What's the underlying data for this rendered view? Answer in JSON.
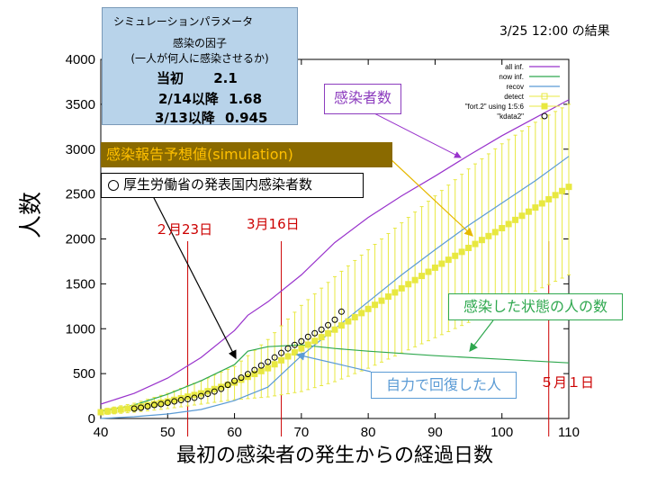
{
  "params_box": {
    "header": "シミュレーションパラメータ",
    "line1": "感染の因子",
    "line2": "(一人が何人に感染させるか)",
    "rows": [
      {
        "label": "当初",
        "value": "2.1"
      },
      {
        "label": "2/14以降",
        "value": "1.68"
      },
      {
        "label": "3/13以降",
        "value": "0.945"
      }
    ]
  },
  "result_text": "3/25 12:00 の結果",
  "annotations": {
    "infected_total": "感染者数",
    "simulation": "感染報告予想値(simulation)",
    "mhlw": "厚生労働省の発表国内感染者数",
    "infected_now": "感染した状態の人の数",
    "recovered": "自力で回復した人"
  },
  "date_markers": [
    {
      "label": "２月23日",
      "x": 53
    },
    {
      "label": "3月16日",
      "x": 67
    },
    {
      "label": "５月１日",
      "x": 107
    }
  ],
  "colors": {
    "all": "#9933cc",
    "now": "#2fa84f",
    "recov": "#5b9bd5",
    "detect": "#e8e840",
    "kdata": "#000000",
    "marker": "#cc0000",
    "arrow_sim": "#e6b800"
  },
  "chart_data": {
    "type": "line",
    "xlabel": "最初の感染者の発生からの経過日数",
    "ylabel": "人数",
    "xlim": [
      40,
      110
    ],
    "ylim": [
      0,
      4000
    ],
    "xticks": [
      40,
      50,
      60,
      70,
      80,
      90,
      100,
      110
    ],
    "yticks": [
      0,
      500,
      1000,
      1500,
      2000,
      2500,
      3000,
      3500,
      4000
    ],
    "legend_position": "top-right",
    "series": [
      {
        "name": "all inf.",
        "kind": "line",
        "x": [
          40,
          45,
          50,
          55,
          60,
          62,
          65,
          70,
          75,
          80,
          85,
          90,
          95,
          100,
          105,
          110
        ],
        "y": [
          160,
          280,
          450,
          680,
          980,
          1150,
          1300,
          1600,
          1960,
          2240,
          2480,
          2700,
          2930,
          3150,
          3350,
          3550
        ]
      },
      {
        "name": "now inf.",
        "kind": "line",
        "x": [
          40,
          45,
          50,
          55,
          60,
          62,
          65,
          70,
          75,
          80,
          90,
          100,
          110
        ],
        "y": [
          80,
          150,
          270,
          420,
          600,
          750,
          800,
          820,
          780,
          750,
          700,
          660,
          620
        ]
      },
      {
        "name": "recov",
        "kind": "line",
        "x": [
          40,
          45,
          50,
          55,
          60,
          65,
          70,
          75,
          80,
          85,
          90,
          95,
          100,
          105,
          110
        ],
        "y": [
          0,
          20,
          50,
          100,
          200,
          350,
          700,
          1000,
          1300,
          1600,
          1880,
          2150,
          2400,
          2650,
          2920
        ]
      },
      {
        "name": "detect",
        "kind": "errorbar",
        "x": [
          40,
          45,
          50,
          55,
          60,
          65,
          70,
          75,
          80,
          85,
          90,
          95,
          100,
          105,
          110
        ],
        "y": [
          70,
          120,
          190,
          280,
          400,
          560,
          780,
          990,
          1220,
          1450,
          1680,
          1900,
          2120,
          2350,
          2580
        ],
        "ylow": [
          40,
          70,
          110,
          160,
          210,
          240,
          300,
          410,
          560,
          730,
          900,
          1070,
          1240,
          1420,
          1600
        ],
        "yhigh": [
          100,
          170,
          280,
          420,
          580,
          880,
          1260,
          1580,
          1880,
          2180,
          2480,
          2780,
          3060,
          3300,
          3500
        ]
      },
      {
        "name": "\"fort.2\" using 1:5:6",
        "kind": "legend-only"
      },
      {
        "name": "\"kdata2\"",
        "kind": "scatter",
        "x": [
          45,
          46,
          47,
          48,
          49,
          50,
          51,
          52,
          53,
          54,
          55,
          56,
          57,
          58,
          59,
          60,
          61,
          62,
          63,
          64,
          65,
          66,
          67,
          68,
          69,
          70,
          71,
          72,
          73,
          74,
          75,
          76
        ],
        "y": [
          110,
          120,
          135,
          150,
          160,
          175,
          190,
          205,
          215,
          230,
          250,
          275,
          300,
          330,
          375,
          420,
          455,
          495,
          540,
          590,
          630,
          680,
          730,
          780,
          820,
          860,
          910,
          950,
          990,
          1040,
          1100,
          1190
        ]
      }
    ]
  }
}
